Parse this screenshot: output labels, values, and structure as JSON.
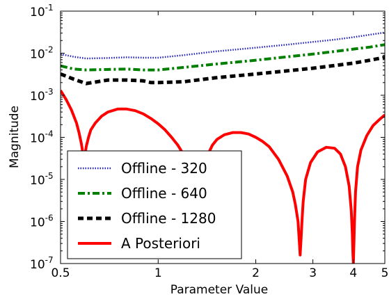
{
  "chart_data": {
    "type": "line",
    "xlabel": "Parameter Value",
    "ylabel": "Magnitude",
    "x_scale": "log",
    "y_scale": "log",
    "xlim": [
      0.5,
      5
    ],
    "ylim": [
      1e-07,
      0.1
    ],
    "x_ticks": [
      {
        "value": 0.5,
        "label": "0.5"
      },
      {
        "value": 1,
        "label": "1"
      },
      {
        "value": 2,
        "label": "2"
      },
      {
        "value": 3,
        "label": "3"
      },
      {
        "value": 4,
        "label": "4"
      },
      {
        "value": 5,
        "label": "5"
      }
    ],
    "y_ticks": [
      {
        "value": 1e-07,
        "base": "10",
        "exp": "-7"
      },
      {
        "value": 1e-06,
        "base": "10",
        "exp": "-6"
      },
      {
        "value": 1e-05,
        "base": "10",
        "exp": "-5"
      },
      {
        "value": 0.0001,
        "base": "10",
        "exp": "-4"
      },
      {
        "value": 0.001,
        "base": "10",
        "exp": "-3"
      },
      {
        "value": 0.01,
        "base": "10",
        "exp": "-2"
      },
      {
        "value": 0.1,
        "base": "10",
        "exp": "-1"
      }
    ],
    "legend_position": "lower-left",
    "series": [
      {
        "name": "Offline - 320",
        "color": "#1f1fbf",
        "style": "dotted",
        "x": [
          0.5,
          0.55,
          0.6,
          0.7,
          0.8,
          0.9,
          1.0,
          1.2,
          1.5,
          2.0,
          2.5,
          3.0,
          3.5,
          4.0,
          4.5,
          5.0
        ],
        "y": [
          0.0095,
          0.0082,
          0.0075,
          0.0077,
          0.008,
          0.0078,
          0.0078,
          0.009,
          0.011,
          0.0135,
          0.016,
          0.0185,
          0.021,
          0.024,
          0.0275,
          0.031
        ]
      },
      {
        "name": "Offline - 640",
        "color": "#007f00",
        "style": "dashdot",
        "x": [
          0.5,
          0.55,
          0.6,
          0.7,
          0.8,
          0.9,
          1.0,
          1.2,
          1.5,
          2.0,
          2.5,
          3.0,
          3.5,
          4.0,
          4.5,
          5.0
        ],
        "y": [
          0.005,
          0.0042,
          0.004,
          0.0041,
          0.0042,
          0.004,
          0.004,
          0.0046,
          0.0055,
          0.0068,
          0.0082,
          0.0095,
          0.011,
          0.0125,
          0.014,
          0.016
        ]
      },
      {
        "name": "Offline - 1280",
        "color": "#000000",
        "style": "dashed",
        "x": [
          0.5,
          0.55,
          0.6,
          0.65,
          0.7,
          0.8,
          0.9,
          0.95,
          1.0,
          1.2,
          1.5,
          2.0,
          2.5,
          3.0,
          3.5,
          4.0,
          4.5,
          5.0
        ],
        "y": [
          0.0032,
          0.0024,
          0.0019,
          0.0021,
          0.0023,
          0.0023,
          0.0022,
          0.002,
          0.002,
          0.0021,
          0.0026,
          0.0032,
          0.0038,
          0.0044,
          0.0051,
          0.0058,
          0.0068,
          0.008
        ]
      },
      {
        "name": "A Posteriori",
        "color": "#ff0000",
        "style": "solid",
        "x": [
          0.5,
          0.52,
          0.54,
          0.56,
          0.57,
          0.58,
          0.585,
          0.59,
          0.595,
          0.6,
          0.61,
          0.62,
          0.64,
          0.67,
          0.7,
          0.75,
          0.8,
          0.85,
          0.9,
          0.95,
          1.0,
          1.05,
          1.1,
          1.15,
          1.2,
          1.25,
          1.3,
          1.33,
          1.36,
          1.38,
          1.4,
          1.43,
          1.47,
          1.52,
          1.6,
          1.7,
          1.8,
          1.9,
          2.0,
          2.1,
          2.2,
          2.35,
          2.5,
          2.6,
          2.65,
          2.7,
          2.72,
          2.74,
          2.76,
          2.78,
          2.8,
          2.85,
          2.95,
          3.1,
          3.3,
          3.5,
          3.65,
          3.78,
          3.88,
          3.94,
          3.97,
          3.985,
          4.0,
          4.015,
          4.03,
          4.06,
          4.12,
          4.22,
          4.4,
          4.6,
          4.8,
          5.0
        ],
        "y": [
          0.0013,
          0.0008,
          0.00045,
          0.00022,
          0.00013,
          7e-05,
          4.5e-05,
          3e-05,
          4e-05,
          6e-05,
          0.0001,
          0.00015,
          0.00022,
          0.00032,
          0.0004,
          0.00047,
          0.00047,
          0.00043,
          0.00036,
          0.00028,
          0.00021,
          0.00015,
          0.0001,
          6.5e-05,
          3.8e-05,
          2e-05,
          8e-06,
          5e-06,
          8e-06,
          1.5e-05,
          2.5e-05,
          4.2e-05,
          6.5e-05,
          9e-05,
          0.000115,
          0.00013,
          0.00013,
          0.00012,
          0.0001,
          8e-05,
          6e-05,
          3e-05,
          1.2e-05,
          5e-06,
          2.5e-06,
          1e-06,
          4e-07,
          1.6e-07,
          4e-07,
          1.2e-06,
          3e-06,
          1e-05,
          2.5e-05,
          4.5e-05,
          5.8e-05,
          5.5e-05,
          4e-05,
          2e-05,
          7e-06,
          1.8e-06,
          5e-07,
          1.8e-07,
          1e-07,
          3e-07,
          1e-06,
          5e-06,
          2e-05,
          5e-05,
          0.00011,
          0.00019,
          0.00026,
          0.00034
        ]
      }
    ]
  }
}
